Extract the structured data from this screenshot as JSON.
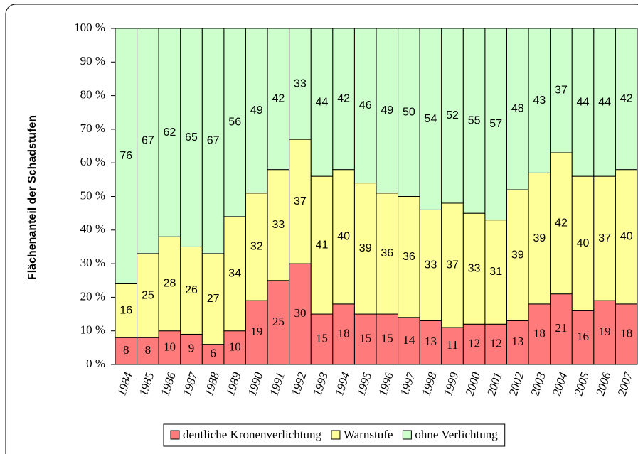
{
  "chart_data": {
    "type": "stacked_bar",
    "ylabel": "Flächenanteil der Schadstufen",
    "categories": [
      "1984",
      "1985",
      "1986",
      "1987",
      "1988",
      "1989",
      "1990",
      "1991",
      "1992",
      "1993",
      "1994",
      "1995",
      "1996",
      "1997",
      "1998",
      "1999",
      "2000",
      "2001",
      "2002",
      "2003",
      "2004",
      "2005",
      "2006",
      "2007"
    ],
    "series": [
      {
        "name": "deutliche Kronenverlichtung",
        "color": "#ff7b7b",
        "values": [
          8,
          8,
          10,
          9,
          6,
          10,
          19,
          25,
          30,
          15,
          18,
          15,
          15,
          14,
          13,
          11,
          12,
          12,
          13,
          18,
          21,
          16,
          19,
          18
        ]
      },
      {
        "name": "Warnstufe",
        "color": "#ffff99",
        "values": [
          16,
          25,
          28,
          26,
          27,
          34,
          32,
          33,
          37,
          41,
          40,
          39,
          36,
          36,
          33,
          37,
          33,
          31,
          39,
          39,
          42,
          40,
          37,
          40
        ]
      },
      {
        "name": "ohne Verlichtung",
        "color": "#ccffcc",
        "values": [
          76,
          67,
          62,
          65,
          67,
          56,
          49,
          42,
          33,
          44,
          42,
          46,
          49,
          50,
          54,
          52,
          55,
          57,
          48,
          43,
          37,
          44,
          44,
          42
        ]
      }
    ],
    "ylim": [
      0,
      100
    ],
    "yticks": [
      {
        "value": 0,
        "label": "0 %"
      },
      {
        "value": 10,
        "label": "10 %"
      },
      {
        "value": 20,
        "label": "20 %"
      },
      {
        "value": 30,
        "label": "30 %"
      },
      {
        "value": 40,
        "label": "40 %"
      },
      {
        "value": 50,
        "label": "50 %"
      },
      {
        "value": 60,
        "label": "60 %"
      },
      {
        "value": 70,
        "label": "70 %"
      },
      {
        "value": 80,
        "label": "80 %"
      },
      {
        "value": 90,
        "label": "90 %"
      },
      {
        "value": 100,
        "label": "100 %"
      }
    ],
    "legend": "bottom"
  }
}
